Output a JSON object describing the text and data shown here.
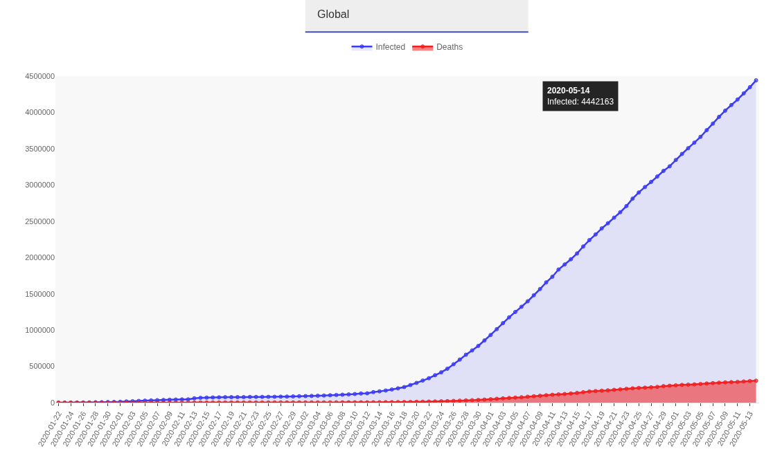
{
  "chart_data": {
    "type": "area",
    "categories": [
      "2020-01-22",
      null,
      "2020-01-24",
      null,
      "2020-01-26",
      null,
      "2020-01-28",
      null,
      "2020-01-30",
      null,
      "2020-02-01",
      null,
      "2020-02-03",
      null,
      "2020-02-05",
      null,
      "2020-02-07",
      null,
      "2020-02-09",
      null,
      "2020-02-11",
      null,
      "2020-02-13",
      null,
      "2020-02-15",
      null,
      "2020-02-17",
      null,
      "2020-02-19",
      null,
      "2020-02-21",
      null,
      "2020-02-23",
      null,
      "2020-02-25",
      null,
      "2020-02-27",
      null,
      "2020-02-29",
      null,
      "2020-03-02",
      null,
      "2020-03-04",
      null,
      "2020-03-06",
      null,
      "2020-03-08",
      null,
      "2020-03-10",
      null,
      "2020-03-12",
      null,
      "2020-03-14",
      null,
      "2020-03-16",
      null,
      "2020-03-18",
      null,
      "2020-03-20",
      null,
      "2020-03-22",
      null,
      "2020-03-24",
      null,
      "2020-03-26",
      null,
      "2020-03-28",
      null,
      "2020-03-30",
      null,
      "2020-04-01",
      null,
      "2020-04-03",
      null,
      "2020-04-05",
      null,
      "2020-04-07",
      null,
      "2020-04-09",
      null,
      "2020-04-11",
      null,
      "2020-04-13",
      null,
      "2020-04-15",
      null,
      "2020-04-17",
      null,
      "2020-04-19",
      null,
      "2020-04-21",
      null,
      "2020-04-23",
      null,
      "2020-04-25",
      null,
      "2020-04-27",
      null,
      "2020-04-29",
      null,
      "2020-05-01",
      null,
      "2020-05-03",
      null,
      "2020-05-05",
      null,
      "2020-05-07",
      null,
      "2020-05-09",
      null,
      "2020-05-11",
      null,
      "2020-05-13",
      null
    ],
    "series": [
      {
        "name": "Infected",
        "color": "#3b3bf5",
        "values": [
          555,
          654,
          941,
          1434,
          2118,
          2927,
          5578,
          6166,
          8234,
          9927,
          12038,
          16787,
          19881,
          23892,
          27635,
          30817,
          34391,
          37120,
          40150,
          42762,
          44802,
          45221,
          60368,
          66885,
          69030,
          71224,
          73258,
          75136,
          75639,
          76197,
          76819,
          78572,
          78958,
          79561,
          80406,
          81388,
          82746,
          84112,
          86011,
          88369,
          90306,
          92840,
          95120,
          97886,
          101801,
          105847,
          109821,
          113590,
          118620,
          125875,
          128352,
          145205,
          156101,
          167454,
          181574,
          197102,
          214821,
          242570,
          272208,
          304507,
          336953,
          378231,
          418041,
          467653,
          529591,
          593291,
          660706,
          720117,
          782365,
          857487,
          932605,
          1013466,
          1095917,
          1176060,
          1249754,
          1321481,
          1396476,
          1480202,
          1565278,
          1657526,
          1735650,
          1834721,
          1904838,
          1976191,
          2056054,
          2152437,
          2240190,
          2317758,
          2401378,
          2472259,
          2549294,
          2624068,
          2708885,
          2811193,
          2896633,
          2971475,
          3041764,
          3116398,
          3193886,
          3256846,
          3343777,
          3427343,
          3506729,
          3583055,
          3662691,
          3755341,
          3845718,
          3938064,
          4024009,
          4101699,
          4177502,
          4261747,
          4347018,
          4442163
        ]
      },
      {
        "name": "Deaths",
        "color": "#f21f1f",
        "values": [
          17,
          18,
          26,
          42,
          56,
          82,
          131,
          133,
          171,
          213,
          259,
          362,
          426,
          492,
          564,
          634,
          719,
          806,
          906,
          1013,
          1113,
          1118,
          1371,
          1523,
          1666,
          1770,
          1868,
          2007,
          2122,
          2247,
          2251,
          2458,
          2469,
          2629,
          2708,
          2770,
          2814,
          2872,
          2941,
          2996,
          3085,
          3160,
          3254,
          3348,
          3460,
          3558,
          3802,
          3988,
          4262,
          4615,
          4720,
          5404,
          5819,
          6440,
          7126,
          7905,
          8733,
          9867,
          11299,
          12973,
          14651,
          16505,
          18625,
          21181,
          23970,
          27198,
          30652,
          33925,
          37582,
          42107,
          47180,
          53190,
          58787,
          64606,
          69374,
          74565,
          81865,
          88338,
          95455,
          102525,
          108503,
          114091,
          119482,
          125984,
          134177,
          143800,
          153821,
          159509,
          165044,
          169986,
          176583,
          183066,
          190858,
          197159,
          202846,
          206544,
          211167,
          217153,
          227638,
          233388,
          238650,
          244663,
          248181,
          251537,
          257239,
          263831,
          269567,
          274898,
          279311,
          282709,
          286330,
          291942,
          297197,
          302418
        ]
      }
    ],
    "ylim": [
      0,
      4500000
    ],
    "yticks": [
      0,
      500000,
      1000000,
      1500000,
      2000000,
      2500000,
      3000000,
      3500000,
      4000000,
      4500000
    ],
    "grid": false,
    "legend": "top",
    "marker": "circle",
    "line_style": "solid",
    "annotations": [
      "Global",
      "2020-05-14\nInfected: 4442163"
    ]
  }
}
